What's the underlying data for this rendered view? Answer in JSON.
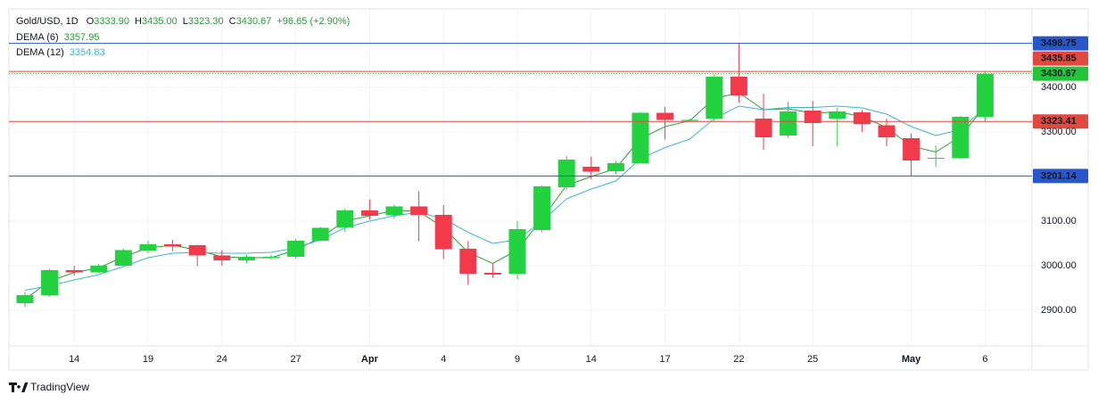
{
  "chart_data": {
    "type": "candlestick",
    "symbol": "Gold/USD, 1D",
    "ohlc_header": [
      {
        "label": "O",
        "value": "3333.90"
      },
      {
        "label": "H",
        "value": "3435.00"
      },
      {
        "label": "L",
        "value": "3323.30"
      },
      {
        "label": "C",
        "value": "3430.67"
      }
    ],
    "change": "+96.65 (+2.90%)",
    "categories": [
      null,
      null,
      "14",
      null,
      null,
      "19",
      null,
      null,
      "24",
      null,
      null,
      "27",
      null,
      null,
      "Apr",
      null,
      null,
      "4",
      null,
      null,
      "9",
      null,
      null,
      "14",
      null,
      null,
      "17",
      null,
      null,
      "22",
      null,
      null,
      "25",
      null,
      null,
      null,
      "May",
      null,
      null,
      "6"
    ],
    "open": [
      2916,
      2934,
      2990,
      2985,
      3000,
      3034,
      3048,
      3046,
      3023,
      3012,
      3018,
      3020,
      3056,
      3086,
      3124,
      3113,
      3133,
      3114,
      3038,
      2984,
      2982,
      3080,
      3176,
      3222,
      3212,
      3230,
      3343,
      3326,
      3330,
      3424,
      3330,
      3292,
      3348,
      3330,
      3344,
      3315,
      3286,
      3240,
      3241,
      3333.9
    ],
    "high": [
      2940,
      2993,
      3000,
      3004,
      3038,
      3056,
      3058,
      3047,
      3035,
      3025,
      3025,
      3060,
      3087,
      3128,
      3149,
      3137,
      3167,
      3136,
      3055,
      3005,
      3100,
      3180,
      3246,
      3245,
      3235,
      3344,
      3357,
      3330,
      3430,
      3500,
      3386,
      3368,
      3370,
      3354,
      3350,
      3330,
      3297,
      3270,
      3336,
      3435
    ],
    "low": [
      2907,
      2930,
      2978,
      2983,
      2999,
      3028,
      3033,
      2999,
      3000,
      3006,
      3013,
      3016,
      3055,
      3076,
      3103,
      3105,
      3055,
      3015,
      2957,
      2973,
      2970,
      3075,
      3171,
      3194,
      3206,
      3229,
      3283,
      3324,
      3325,
      3366,
      3260,
      3287,
      3268,
      3268,
      3300,
      3268,
      3202,
      3222,
      3240,
      3323.3
    ],
    "close": [
      2934,
      2990,
      2985,
      3000,
      3035,
      3048,
      3043,
      3023,
      3012,
      3020,
      3020,
      3056,
      3085,
      3124,
      3112,
      3133,
      3114,
      3037,
      2982,
      2980,
      3082,
      3178,
      3238,
      3211,
      3230,
      3343,
      3327,
      3327,
      3424,
      3382,
      3288,
      3346,
      3320,
      3346,
      3318,
      3288,
      3236,
      3242,
      3334,
      3430.67
    ],
    "up_color": "#22d23f",
    "down_color": "#f23a4b",
    "series": [
      {
        "name": "DEMA (6)",
        "color": "#2e9e3a",
        "last_label": "3357.95",
        "values": [
          2925,
          2965,
          2985,
          2995,
          3020,
          3040,
          3046,
          3035,
          3020,
          3018,
          3018,
          3035,
          3063,
          3100,
          3112,
          3124,
          3122,
          3085,
          3030,
          3005,
          3035,
          3105,
          3180,
          3200,
          3218,
          3285,
          3312,
          3325,
          3375,
          3388,
          3350,
          3352,
          3342,
          3345,
          3335,
          3310,
          3268,
          3255,
          3290,
          3357.95
        ]
      },
      {
        "name": "DEMA (12)",
        "color": "#3bb8cf",
        "last_label": "3354.83",
        "values": [
          2945,
          2955,
          2968,
          2980,
          2998,
          3018,
          3028,
          3030,
          3028,
          3028,
          3030,
          3040,
          3058,
          3085,
          3100,
          3112,
          3120,
          3105,
          3075,
          3050,
          3058,
          3100,
          3150,
          3172,
          3190,
          3240,
          3265,
          3284,
          3330,
          3358,
          3350,
          3355,
          3355,
          3358,
          3354,
          3340,
          3312,
          3292,
          3305,
          3354.83
        ]
      }
    ],
    "hlines": [
      {
        "value": 3498.75,
        "label": "3498.75",
        "color": "#2757c9",
        "style": "solid"
      },
      {
        "value": 3435.85,
        "label": "3435.85",
        "color": "#e0493f",
        "style": "solid"
      },
      {
        "value": 3430.67,
        "label": "3430.67",
        "color": "#22c43a",
        "style": "dotted"
      },
      {
        "value": 3323.41,
        "label": "3323.41",
        "color": "#e0493f",
        "style": "solid"
      },
      {
        "value": 3201.14,
        "label": "3201.14",
        "color": "#2757c9",
        "style": "solid"
      }
    ],
    "ylim": [
      2820,
      3576
    ],
    "yticks": [
      {
        "value": 2900,
        "label": "2900.00"
      },
      {
        "value": 3000,
        "label": "3000.00"
      },
      {
        "value": 3100,
        "label": "3100.00"
      },
      {
        "value": 3300,
        "label": "3300.00"
      },
      {
        "value": 3400,
        "label": "3400.00"
      }
    ],
    "grid": true,
    "branding": "TradingView"
  }
}
